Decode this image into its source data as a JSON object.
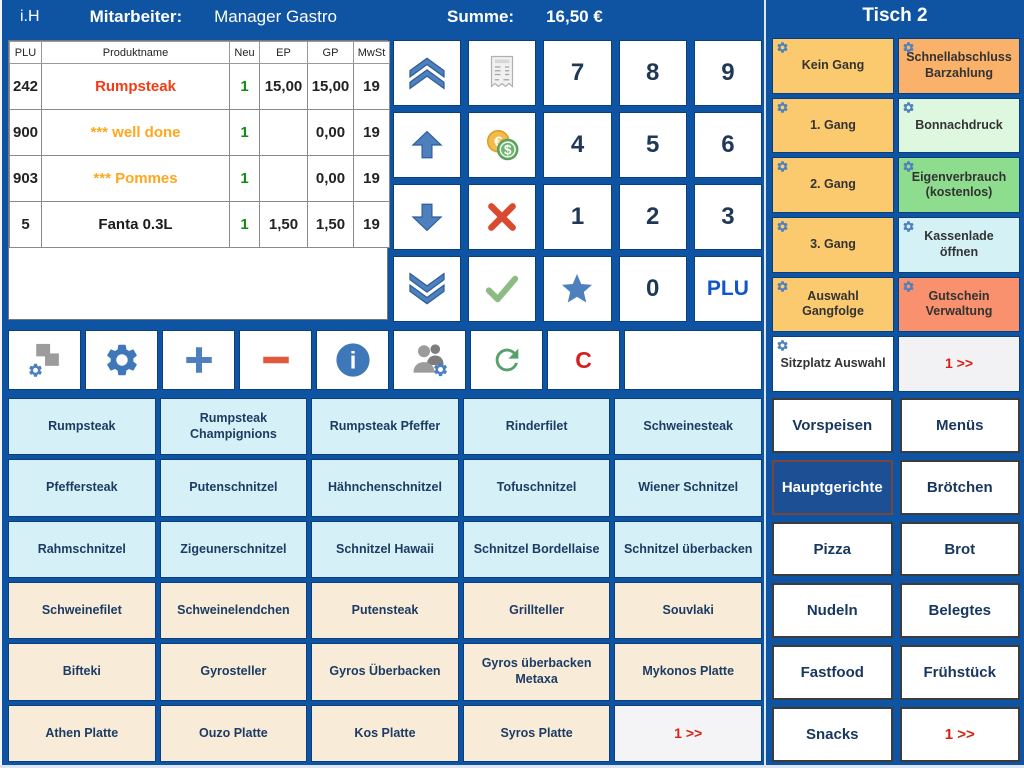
{
  "header": {
    "mode": "i.H",
    "employee_label": "Mitarbeiter:",
    "employee_name": "Manager Gastro",
    "sum_label": "Summe:",
    "sum_value": "16,50 €",
    "table_title": "Tisch 2"
  },
  "order_table": {
    "columns": [
      "PLU",
      "Produktname",
      "Neu",
      "EP",
      "GP",
      "MwSt"
    ],
    "rows": [
      {
        "plu": "242",
        "name": "Rumpsteak",
        "neu": "1",
        "ep": "15,00",
        "gp": "15,00",
        "mwst": "19",
        "color": "#f43b13"
      },
      {
        "plu": "900",
        "name": "*** well done",
        "neu": "1",
        "ep": "",
        "gp": "0,00",
        "mwst": "19",
        "color": "#ffa81e"
      },
      {
        "plu": "903",
        "name": "*** Pommes",
        "neu": "1",
        "ep": "",
        "gp": "0,00",
        "mwst": "19",
        "color": "#ffa81e"
      },
      {
        "plu": "5",
        "name": "Fanta 0.3L",
        "neu": "1",
        "ep": "1,50",
        "gp": "1,50",
        "mwst": "19",
        "color": "#1b1b1b"
      }
    ]
  },
  "keypad": {
    "cells": [
      {
        "name": "scroll-top-button",
        "icon": "scroll-top-icon"
      },
      {
        "name": "receipt-button",
        "icon": "receipt-icon"
      },
      {
        "name": "key-7",
        "label": "7"
      },
      {
        "name": "key-8",
        "label": "8"
      },
      {
        "name": "key-9",
        "label": "9"
      },
      {
        "name": "scroll-up-button",
        "icon": "scroll-up-icon"
      },
      {
        "name": "payment-button",
        "icon": "payment-coins-icon"
      },
      {
        "name": "key-4",
        "label": "4"
      },
      {
        "name": "key-5",
        "label": "5"
      },
      {
        "name": "key-6",
        "label": "6"
      },
      {
        "name": "scroll-down-button",
        "icon": "scroll-down-icon"
      },
      {
        "name": "void-button",
        "icon": "void-x-icon"
      },
      {
        "name": "key-1",
        "label": "1"
      },
      {
        "name": "key-2",
        "label": "2"
      },
      {
        "name": "key-3",
        "label": "3"
      },
      {
        "name": "scroll-bottom-button",
        "icon": "scroll-bottom-icon"
      },
      {
        "name": "confirm-button",
        "icon": "confirm-check-icon"
      },
      {
        "name": "favorites-button",
        "icon": "favorites-star-icon"
      },
      {
        "name": "key-0",
        "label": "0"
      },
      {
        "name": "plu-button",
        "label": "PLU",
        "style": "plu"
      }
    ]
  },
  "toolbar": {
    "buttons": [
      {
        "name": "layout-button",
        "icon": "layout-squares-gear-icon"
      },
      {
        "name": "settings-button",
        "icon": "settings-gear-icon"
      },
      {
        "name": "add-button",
        "icon": "plus-icon"
      },
      {
        "name": "subtract-button",
        "icon": "minus-icon"
      },
      {
        "name": "info-button",
        "icon": "info-icon"
      },
      {
        "name": "staff-button",
        "icon": "staff-settings-icon"
      },
      {
        "name": "reorder-button",
        "icon": "refresh-icon"
      },
      {
        "name": "clear-button",
        "label": "C",
        "style": "clear"
      },
      {
        "name": "blank-button",
        "style": "wide"
      }
    ]
  },
  "products": {
    "items": [
      {
        "label": "Rumpsteak",
        "bg": "#d5f0f6"
      },
      {
        "label": "Rumpsteak Champignions",
        "bg": "#d5f0f6"
      },
      {
        "label": "Rumpsteak Pfeffer",
        "bg": "#d5f0f6"
      },
      {
        "label": "Rinderfilet",
        "bg": "#d5f0f6"
      },
      {
        "label": "Schweinesteak",
        "bg": "#d5f0f6"
      },
      {
        "label": "Pfeffersteak",
        "bg": "#d5f0f6"
      },
      {
        "label": "Putenschnitzel",
        "bg": "#d5f0f6"
      },
      {
        "label": "Hähnchenschnitzel",
        "bg": "#d5f0f6"
      },
      {
        "label": "Tofuschnitzel",
        "bg": "#d5f0f6"
      },
      {
        "label": "Wiener Schnitzel",
        "bg": "#d5f0f6"
      },
      {
        "label": "Rahmschnitzel",
        "bg": "#d5f0f6"
      },
      {
        "label": "Zigeunerschnitzel",
        "bg": "#d5f0f6"
      },
      {
        "label": "Schnitzel Hawaii",
        "bg": "#d5f0f6"
      },
      {
        "label": "Schnitzel Bordellaise",
        "bg": "#d5f0f6"
      },
      {
        "label": "Schnitzel überbacken",
        "bg": "#d5f0f6"
      },
      {
        "label": "Schweinefilet",
        "bg": "#f8ecd9"
      },
      {
        "label": "Schweinelendchen",
        "bg": "#f8ecd9"
      },
      {
        "label": "Putensteak",
        "bg": "#f8ecd9"
      },
      {
        "label": "Grillteller",
        "bg": "#f8ecd9"
      },
      {
        "label": "Souvlaki",
        "bg": "#f8ecd9"
      },
      {
        "label": "Bifteki",
        "bg": "#f8ecd9"
      },
      {
        "label": "Gyrosteller",
        "bg": "#f8ecd9"
      },
      {
        "label": "Gyros Überbacken",
        "bg": "#f8ecd9"
      },
      {
        "label": "Gyros überbacken Metaxa",
        "bg": "#f8ecd9"
      },
      {
        "label": "Mykonos Platte",
        "bg": "#f8ecd9"
      },
      {
        "label": "Athen Platte",
        "bg": "#f8ecd9"
      },
      {
        "label": "Ouzo Platte",
        "bg": "#f8ecd9"
      },
      {
        "label": "Kos Platte",
        "bg": "#f8ecd9"
      },
      {
        "label": "Syros Platte",
        "bg": "#f8ecd9"
      },
      {
        "label": "1 >>",
        "bg": "#f4f4f6",
        "pager": true
      }
    ]
  },
  "functions": {
    "items": [
      {
        "label": "Kein Gang",
        "bg": "#fcca6e",
        "gear": true
      },
      {
        "label": "Schnellabschluss Barzahlung",
        "bg": "#fab169",
        "gear": true
      },
      {
        "label": "1. Gang",
        "bg": "#fcca6e",
        "gear": true
      },
      {
        "label": "Bonnachdruck",
        "bg": "#def8e0",
        "gear": true
      },
      {
        "label": "2. Gang",
        "bg": "#fcca6e",
        "gear": true
      },
      {
        "label": "Eigenverbrauch (kostenlos)",
        "bg": "#8edc8e",
        "gear": true
      },
      {
        "label": "3. Gang",
        "bg": "#fcca6e",
        "gear": true
      },
      {
        "label": "Kassenlade öffnen",
        "bg": "#d4f1f6",
        "gear": true
      },
      {
        "label": "Auswahl Gangfolge",
        "bg": "#fcca6e",
        "gear": true
      },
      {
        "label": "Gutschein Verwaltung",
        "bg": "#f9916f",
        "gear": true
      },
      {
        "label": "Sitzplatz Auswahl",
        "bg": "#ffffff",
        "gear": true
      },
      {
        "label": "1 >>",
        "bg": "#f2f2f4",
        "gear": false,
        "pager": true
      }
    ]
  },
  "categories": {
    "items": [
      {
        "label": "Vorspeisen"
      },
      {
        "label": "Menüs"
      },
      {
        "label": "Hauptgerichte",
        "selected": true
      },
      {
        "label": "Brötchen"
      },
      {
        "label": "Pizza"
      },
      {
        "label": "Brot"
      },
      {
        "label": "Nudeln"
      },
      {
        "label": "Belegtes"
      },
      {
        "label": "Fastfood"
      },
      {
        "label": "Frühstück"
      },
      {
        "label": "Snacks"
      },
      {
        "label": "1 >>",
        "more": true
      }
    ]
  },
  "colors": {
    "background_blue": "#0e54a3",
    "selected_category": "#1c4f93",
    "accent_steel_blue": "#4d80bd",
    "pager_red": "#d42314",
    "qty_green": "#118a11",
    "item_red": "#f43b13",
    "item_orange": "#ffa81e"
  }
}
